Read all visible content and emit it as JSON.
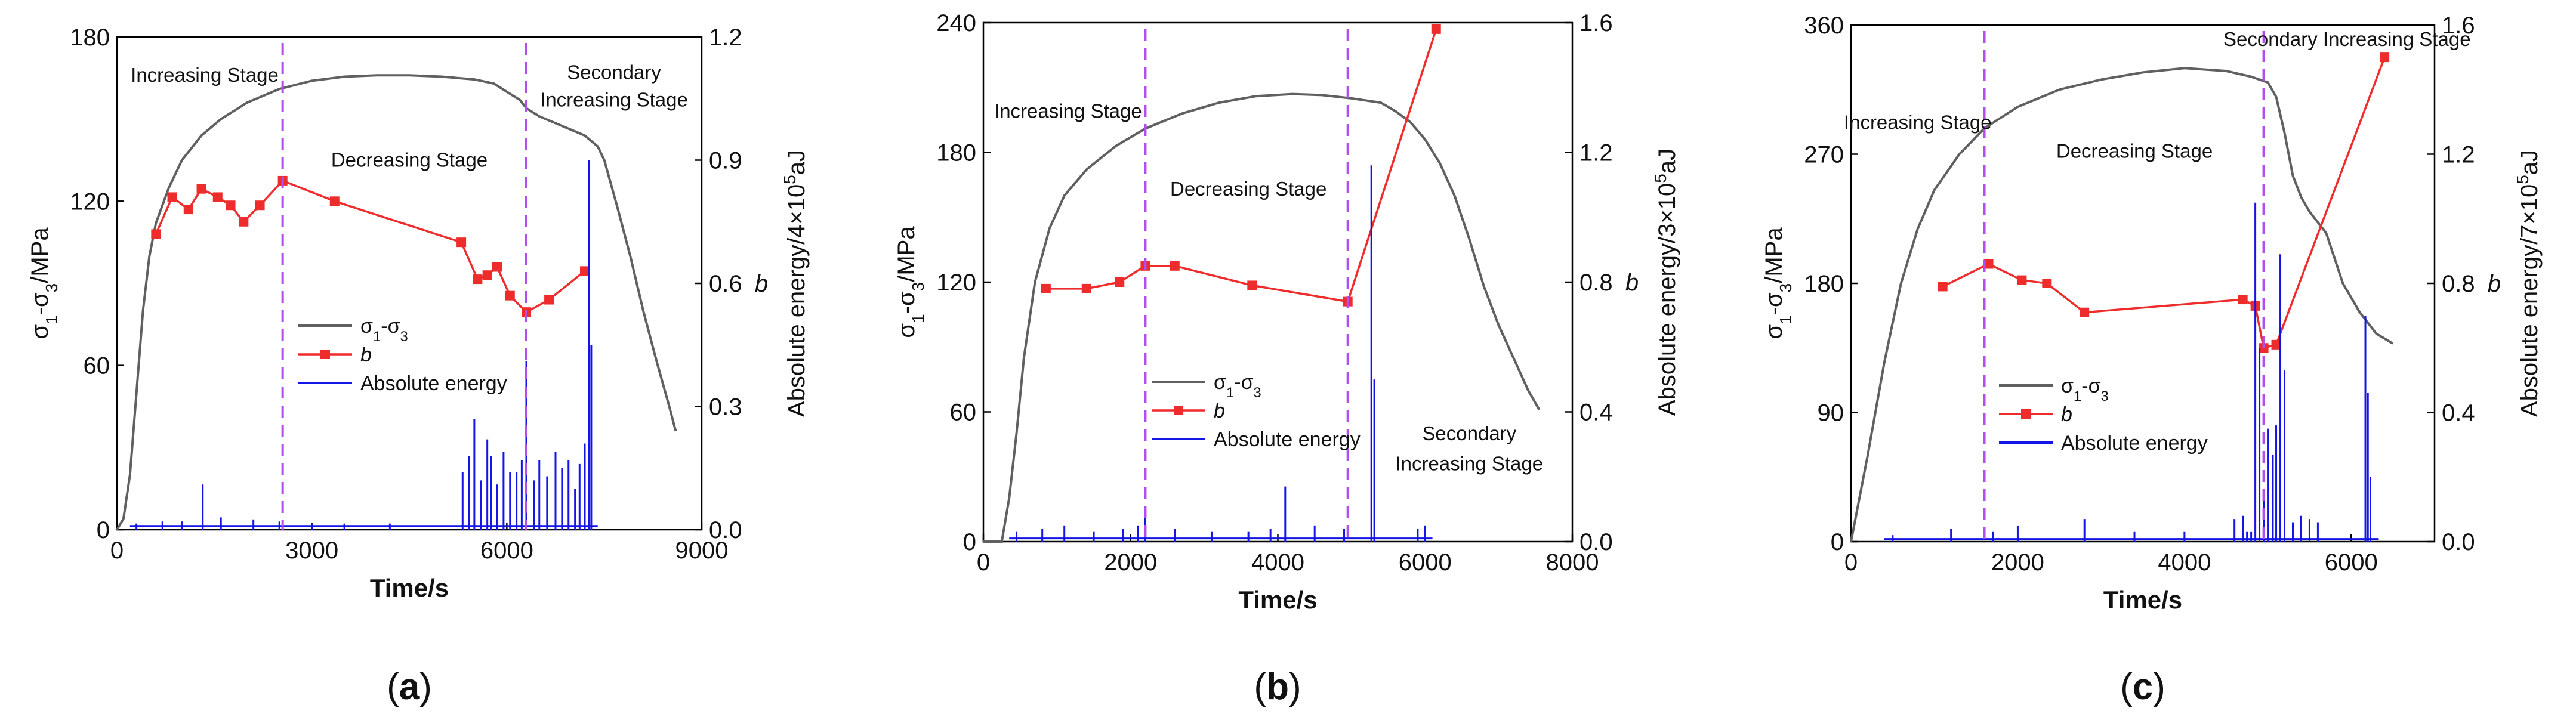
{
  "colors": {
    "stress": "#606060",
    "b": "#ee2c2c",
    "energy": "#1414e6",
    "divider": "#b24df0"
  },
  "chart_data": [
    {
      "type": "line",
      "panel_label": "a",
      "xlabel": "Time/s",
      "ylabel_left": "σ1-σ3/MPa",
      "ylabel_right": "Absolute energy/4×10⁵aJ",
      "ylabel_right2": "b",
      "xlim": [
        0,
        9000
      ],
      "xticks": [
        0,
        3000,
        6000,
        9000
      ],
      "ylim_left": [
        0,
        180
      ],
      "yticks_left": [
        0,
        60,
        120,
        180
      ],
      "ylim_right": [
        0,
        1.2
      ],
      "yticks_right": [
        "0.0",
        "0.3",
        "0.6",
        "0.9",
        "1.2"
      ],
      "stage_dividers": [
        2550,
        6300
      ],
      "stage_labels": [
        {
          "text": "Increasing Stage",
          "x": 1350,
          "y": 166
        },
        {
          "text": "Decreasing Stage",
          "x": 4500,
          "y": 135
        },
        {
          "text": "Secondary",
          "x": 7650,
          "y": 167
        },
        {
          "text": "Increasing Stage",
          "x": 7650,
          "y": 157
        }
      ],
      "legend": [
        "σ1-σ3",
        "b",
        "Absolute energy"
      ],
      "series": [
        {
          "name": "σ1-σ3",
          "axis": "left",
          "x": [
            0,
            100,
            200,
            300,
            400,
            500,
            600,
            800,
            1000,
            1300,
            1600,
            2000,
            2500,
            3000,
            3500,
            4000,
            4500,
            5000,
            5500,
            5800,
            6000,
            6200,
            6300,
            6500,
            6800,
            7000,
            7200,
            7400,
            7500,
            7700,
            7900,
            8100,
            8300,
            8500,
            8600
          ],
          "y": [
            0,
            4,
            20,
            50,
            80,
            100,
            112,
            125,
            135,
            144,
            150,
            156,
            161,
            164,
            165.5,
            166,
            166,
            165.5,
            164.5,
            163,
            160,
            157,
            154,
            151,
            148,
            146,
            144,
            140,
            135,
            118,
            100,
            80,
            62,
            45,
            36
          ]
        },
        {
          "name": "b",
          "axis": "right",
          "x": [
            600,
            850,
            1100,
            1300,
            1550,
            1750,
            1950,
            2200,
            2550,
            3350,
            5300,
            5550,
            5700,
            5850,
            6050,
            6300,
            6650,
            7200
          ],
          "y": [
            0.72,
            0.81,
            0.78,
            0.83,
            0.81,
            0.79,
            0.75,
            0.79,
            0.85,
            0.8,
            0.7,
            0.61,
            0.62,
            0.64,
            0.57,
            0.53,
            0.56,
            0.63
          ]
        },
        {
          "name": "Absolute energy",
          "axis": "right",
          "style": "spikes",
          "baseline": 0.009,
          "x": [
            300,
            700,
            1000,
            1320,
            1600,
            2100,
            2500,
            3000,
            3500,
            4200,
            5320,
            5420,
            5500,
            5600,
            5700,
            5760,
            5850,
            5950,
            6050,
            6150,
            6230,
            6300,
            6420,
            6500,
            6620,
            6750,
            6850,
            6950,
            7050,
            7120,
            7200,
            7260,
            7300
          ],
          "y": [
            0.015,
            0.02,
            0.02,
            0.11,
            0.03,
            0.025,
            0.02,
            0.015,
            0.015,
            0.015,
            0.14,
            0.18,
            0.27,
            0.12,
            0.22,
            0.18,
            0.11,
            0.19,
            0.14,
            0.14,
            0.17,
            0.41,
            0.12,
            0.17,
            0.13,
            0.19,
            0.15,
            0.17,
            0.1,
            0.16,
            0.21,
            0.9,
            0.45
          ]
        }
      ]
    },
    {
      "type": "line",
      "panel_label": "b",
      "xlabel": "Time/s",
      "ylabel_left": "σ1-σ3/MPa",
      "ylabel_right": "Absolute energy/3×10⁵aJ",
      "ylabel_right2": "b",
      "xlim": [
        0,
        8000
      ],
      "xticks": [
        0,
        2000,
        4000,
        6000,
        8000
      ],
      "ylim_left": [
        0,
        240
      ],
      "yticks_left": [
        0,
        60,
        120,
        180,
        240
      ],
      "ylim_right": [
        0,
        1.6
      ],
      "yticks_right": [
        "0.0",
        "0.4",
        "0.8",
        "1.2",
        "1.6"
      ],
      "stage_dividers": [
        2200,
        4950
      ],
      "stage_labels": [
        {
          "text": "Increasing Stage",
          "x": 1150,
          "y": 199
        },
        {
          "text": "Decreasing Stage",
          "x": 3600,
          "y": 163
        },
        {
          "text": "Secondary",
          "x": 6600,
          "y": 50
        },
        {
          "text": "Increasing Stage",
          "x": 6600,
          "y": 36
        }
      ],
      "legend": [
        "σ1-σ3",
        "b",
        "Absolute energy"
      ],
      "series": [
        {
          "name": "σ1-σ3",
          "axis": "left",
          "x": [
            0,
            250,
            350,
            450,
            550,
            700,
            900,
            1100,
            1400,
            1800,
            2200,
            2700,
            3200,
            3700,
            4200,
            4600,
            5000,
            5200,
            5400,
            5600,
            5800,
            6000,
            6200,
            6400,
            6600,
            6800,
            7000,
            7200,
            7400,
            7550
          ],
          "y": [
            0,
            0,
            20,
            50,
            85,
            120,
            145,
            160,
            172,
            183,
            191,
            198,
            203,
            206,
            207,
            206.5,
            205,
            204,
            203,
            199,
            194,
            186,
            175,
            160,
            140,
            118,
            100,
            85,
            70,
            61
          ]
        },
        {
          "name": "b",
          "axis": "right",
          "x": [
            850,
            1400,
            1850,
            2200,
            2600,
            3650,
            4950,
            6150
          ],
          "y": [
            0.78,
            0.78,
            0.8,
            0.85,
            0.85,
            0.79,
            0.74,
            1.58
          ]
        },
        {
          "name": "Absolute energy",
          "axis": "right",
          "style": "spikes",
          "baseline": 0.01,
          "x": [
            450,
            800,
            1100,
            1500,
            1900,
            2100,
            2200,
            2600,
            3100,
            3600,
            3900,
            4100,
            4500,
            4900,
            5270,
            5310,
            5900,
            6000
          ],
          "y": [
            0.03,
            0.04,
            0.05,
            0.03,
            0.04,
            0.05,
            0.08,
            0.04,
            0.03,
            0.03,
            0.04,
            0.17,
            0.05,
            0.04,
            1.16,
            0.5,
            0.04,
            0.05
          ]
        }
      ]
    },
    {
      "type": "line",
      "panel_label": "c",
      "xlabel": "Time/s",
      "ylabel_left": "σ1-σ3/MPa",
      "ylabel_right": "Absolute energy/7×10⁵aJ",
      "ylabel_right2": "b",
      "xlim": [
        0,
        7000
      ],
      "xticks": [
        0,
        2000,
        4000,
        6000
      ],
      "ylim_left": [
        0,
        360
      ],
      "yticks_left": [
        0,
        90,
        180,
        270,
        360
      ],
      "ylim_right": [
        0,
        1.6
      ],
      "yticks_right": [
        "0.0",
        "0.4",
        "0.8",
        "1.2",
        "1.6"
      ],
      "stage_dividers": [
        1600,
        4950
      ],
      "stage_labels": [
        {
          "text": "Increasing Stage",
          "x": 800,
          "y": 292
        },
        {
          "text": "Decreasing Stage",
          "x": 3400,
          "y": 272
        },
        {
          "text": "Secondary Increasing Stage",
          "x": 5950,
          "y": 350
        }
      ],
      "legend": [
        "σ1-σ3",
        "b",
        "Absolute energy"
      ],
      "series": [
        {
          "name": "σ1-σ3",
          "axis": "left",
          "x": [
            0,
            200,
            400,
            600,
            800,
            1000,
            1300,
            1600,
            2000,
            2500,
            3000,
            3500,
            4000,
            4500,
            4800,
            5000,
            5100,
            5200,
            5300,
            5400,
            5500,
            5700,
            5900,
            6100,
            6300,
            6500
          ],
          "y": [
            0,
            60,
            125,
            180,
            218,
            245,
            270,
            288,
            303,
            315,
            322,
            327,
            330,
            328,
            324,
            320,
            310,
            285,
            255,
            240,
            230,
            215,
            180,
            160,
            145,
            138
          ]
        },
        {
          "name": "b",
          "axis": "right",
          "x": [
            1100,
            1650,
            2050,
            2350,
            2800,
            4700,
            4850,
            4950,
            5100,
            6400
          ],
          "y": [
            0.79,
            0.86,
            0.81,
            0.8,
            0.71,
            0.75,
            0.73,
            0.6,
            0.61,
            1.5
          ]
        },
        {
          "name": "Absolute energy",
          "axis": "right",
          "style": "spikes",
          "baseline": 0.008,
          "x": [
            500,
            1200,
            1700,
            2000,
            2800,
            3400,
            4000,
            4600,
            4700,
            4750,
            4800,
            4850,
            4900,
            4950,
            5000,
            5060,
            5100,
            5150,
            5200,
            5300,
            5400,
            5500,
            5600,
            6170,
            6200,
            6230
          ],
          "y": [
            0.02,
            0.04,
            0.03,
            0.05,
            0.07,
            0.03,
            0.03,
            0.07,
            0.08,
            0.03,
            0.03,
            1.05,
            0.6,
            0.15,
            0.35,
            0.27,
            0.36,
            0.89,
            0.53,
            0.06,
            0.08,
            0.07,
            0.06,
            0.7,
            0.46,
            0.2
          ]
        }
      ]
    }
  ]
}
